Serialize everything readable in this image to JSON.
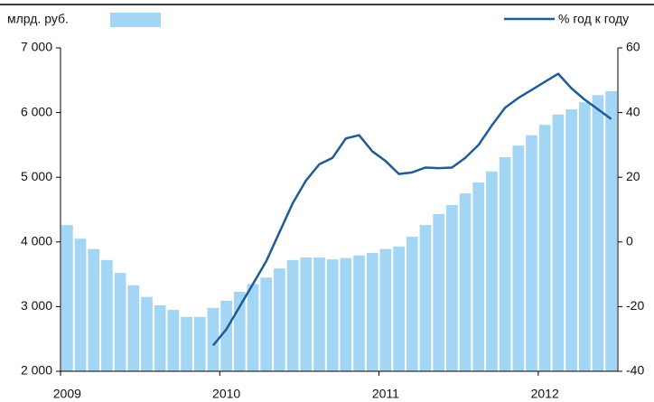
{
  "chart_data": {
    "type": "bar_line",
    "categories": [
      "2009",
      null,
      null,
      null,
      null,
      null,
      null,
      null,
      null,
      null,
      null,
      null,
      "2010",
      null,
      null,
      null,
      null,
      null,
      null,
      null,
      null,
      null,
      null,
      null,
      "2011",
      null,
      null,
      null,
      null,
      null,
      null,
      null,
      null,
      null,
      null,
      null,
      "2012",
      null,
      null,
      null,
      null,
      null
    ],
    "series": [
      {
        "name": "млрд. руб.",
        "color": "#a3d6f5",
        "type": "bar",
        "values": [
          4260,
          4050,
          3890,
          3720,
          3520,
          3330,
          3150,
          3020,
          2950,
          2840,
          2840,
          2980,
          3090,
          3230,
          3350,
          3450,
          3590,
          3720,
          3760,
          3760,
          3730,
          3750,
          3790,
          3830,
          3890,
          3930,
          4080,
          4260,
          4430,
          4570,
          4750,
          4920,
          5090,
          5310,
          5490,
          5650,
          5810,
          5970,
          6050,
          6160,
          6270,
          6330
        ]
      },
      {
        "name": "% год к году",
        "color": "#1f5c96",
        "type": "line",
        "axis": "y2",
        "values": [
          null,
          null,
          null,
          null,
          null,
          null,
          null,
          null,
          null,
          null,
          null,
          -32,
          -27,
          -20,
          -13,
          -6,
          3,
          12,
          19,
          24,
          26,
          32,
          33,
          28,
          25,
          21,
          21.5,
          23,
          22.8,
          23,
          26,
          30,
          36,
          41.5,
          44.5,
          47,
          49.5,
          52,
          47.5,
          44,
          41,
          38
        ]
      }
    ],
    "ylim": [
      2000,
      7000
    ],
    "yticks": [
      {
        "value": 2000,
        "label": "2 000"
      },
      {
        "value": 3000,
        "label": "3 000"
      },
      {
        "value": 4000,
        "label": "4 000"
      },
      {
        "value": 5000,
        "label": "5 000"
      },
      {
        "value": 6000,
        "label": "6 000"
      },
      {
        "value": 7000,
        "label": "7 000"
      }
    ],
    "y2lim": [
      -40,
      60
    ],
    "y2ticks": [
      -40,
      -20,
      0,
      20,
      40,
      60
    ]
  }
}
